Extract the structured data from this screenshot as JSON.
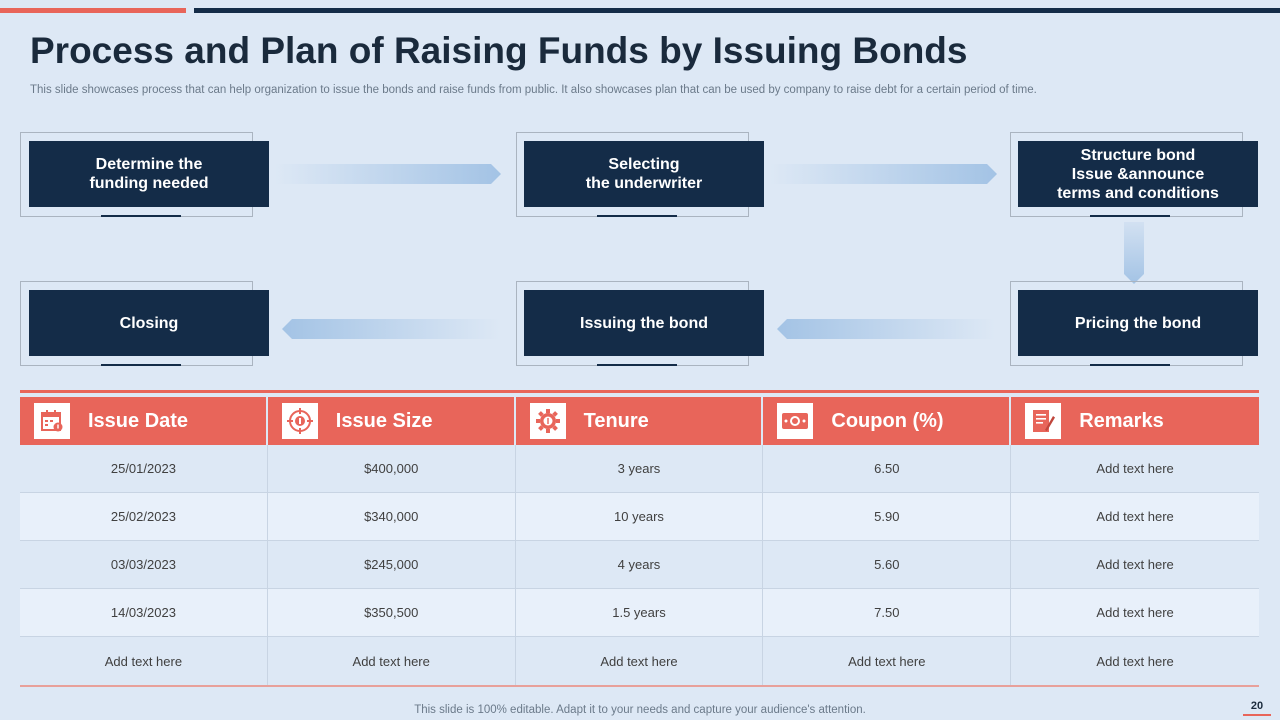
{
  "header": {
    "title": "Process and Plan of Raising Funds by Issuing Bonds",
    "subtitle": "This slide showcases process that can help organization to issue the bonds and raise funds from public. It also showcases plan that can be used by company to raise debt for a certain period of time."
  },
  "process": {
    "steps": [
      {
        "label": "Determine the\nfunding needed"
      },
      {
        "label": "Selecting\nthe underwriter"
      },
      {
        "label": "Structure bond\nIssue &announce\nterms and conditions"
      },
      {
        "label": "Pricing the bond"
      },
      {
        "label": "Issuing the bond"
      },
      {
        "label": "Closing"
      }
    ]
  },
  "table": {
    "headers": [
      {
        "label": "Issue Date",
        "icon": "calendar-icon"
      },
      {
        "label": "Issue Size",
        "icon": "target-icon"
      },
      {
        "label": "Tenure",
        "icon": "gear-dollar-icon"
      },
      {
        "label": "Coupon (%)",
        "icon": "banknote-icon"
      },
      {
        "label": "Remarks",
        "icon": "document-pen-icon"
      }
    ],
    "rows": [
      [
        "25/01/2023",
        "$400,000",
        "3 years",
        "6.50",
        "Add text here"
      ],
      [
        "25/02/2023",
        "$340,000",
        "10 years",
        "5.90",
        "Add text here"
      ],
      [
        "03/03/2023",
        "$245,000",
        "4 years",
        "5.60",
        "Add text here"
      ],
      [
        "14/03/2023",
        "$350,500",
        "1.5 years",
        "7.50",
        "Add text here"
      ],
      [
        "Add text here",
        "Add text here",
        "Add text here",
        "Add text here",
        "Add text here"
      ]
    ]
  },
  "footer": {
    "note": "This slide is 100% editable. Adapt it to your needs and capture your audience's attention.",
    "page_number": "20"
  },
  "colors": {
    "accent": "#e8655a",
    "navy": "#142c48",
    "background": "#dde8f5"
  }
}
